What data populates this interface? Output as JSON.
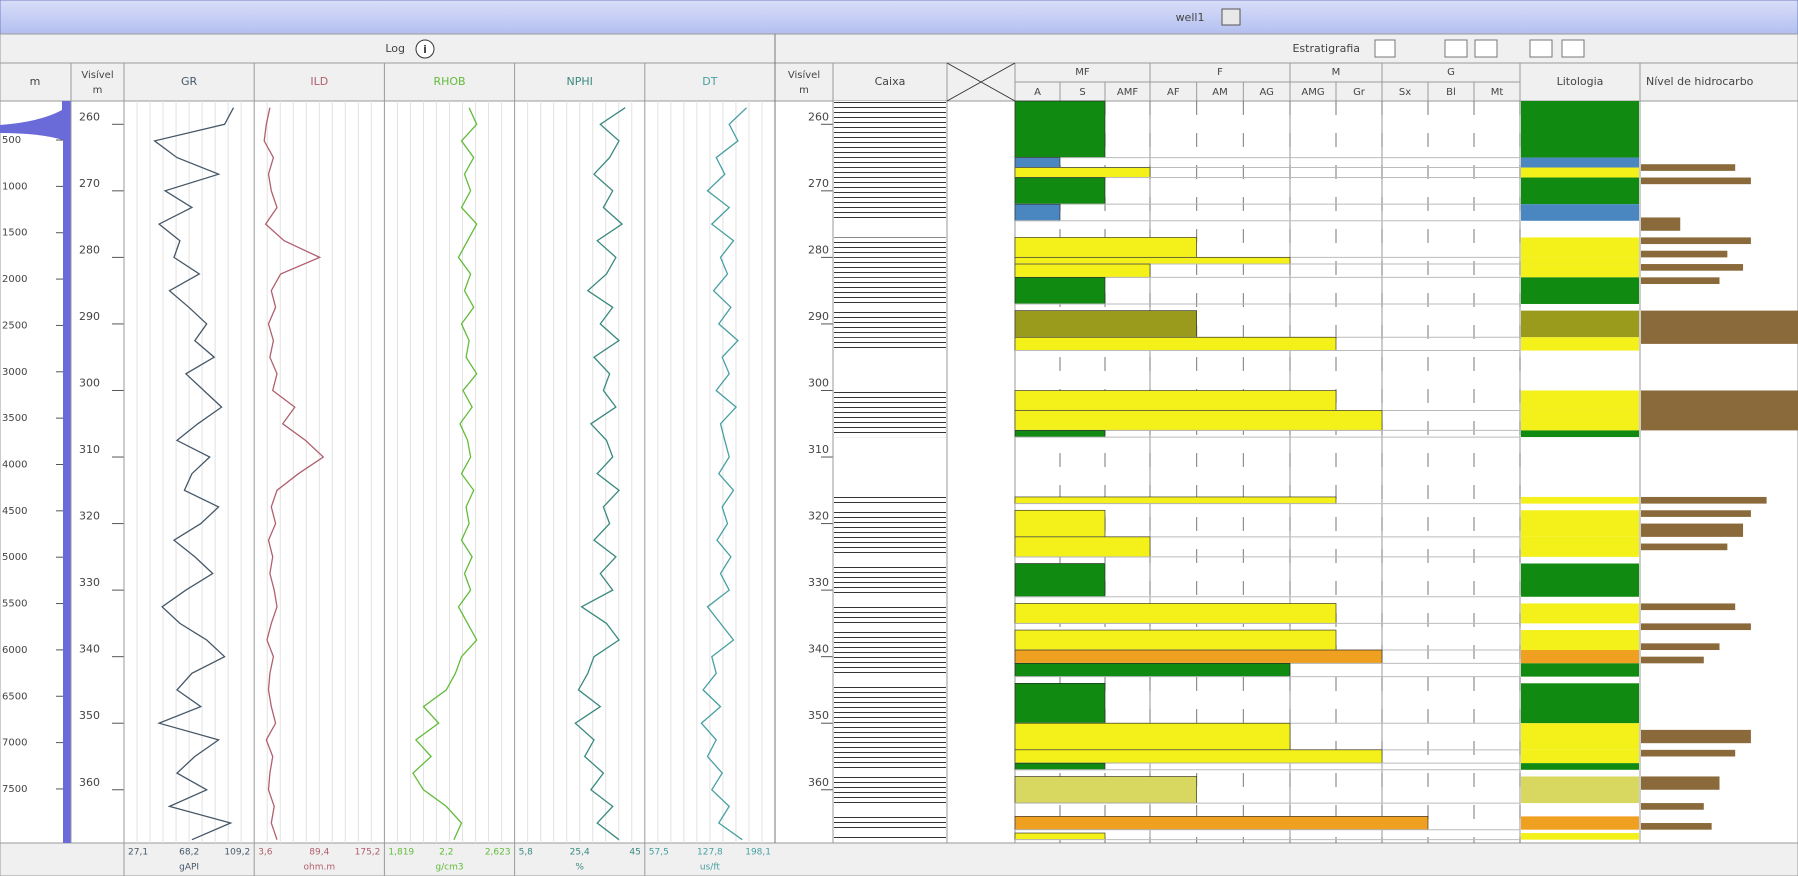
{
  "title": "well1",
  "log_panel": {
    "label": "Log"
  },
  "strat_panel": {
    "label": "Estratigrafia"
  },
  "md_column": {
    "label": "m",
    "range": [
      79,
      8083
    ],
    "ticks": [
      500,
      1000,
      1500,
      2000,
      2500,
      3000,
      3500,
      4000,
      4500,
      5000,
      5500,
      6000,
      6500,
      7000,
      7500
    ]
  },
  "depth_column": {
    "label": [
      "Visível",
      "m"
    ],
    "range": [
      256.5,
      368
    ],
    "ticks": [
      260,
      270,
      280,
      290,
      300,
      310,
      320,
      330,
      340,
      350,
      360
    ]
  },
  "depths": [
    257.5,
    260,
    262.5,
    265,
    267.5,
    270,
    272.5,
    275,
    277.5,
    280,
    282.5,
    285,
    287.5,
    290,
    292.5,
    295,
    297.5,
    300,
    302.5,
    305,
    307.5,
    310,
    312.5,
    315,
    317.5,
    320,
    322.5,
    325,
    327.5,
    330,
    332.5,
    335,
    337.5,
    340,
    342.5,
    345,
    347.5,
    350,
    352.5,
    355,
    357.5,
    360,
    362.5,
    365,
    367.5
  ],
  "curves": [
    {
      "name": "GR",
      "color": "#465868",
      "unit": "gAPI",
      "scale": [
        {
          "value": 27.1,
          "label": "27,1"
        },
        {
          "value": 68.2,
          "label": "68,2"
        },
        {
          "value": 109.2,
          "label": "109,2"
        }
      ],
      "values": [
        98,
        92,
        45,
        60,
        88,
        52,
        70,
        48,
        62,
        58,
        75,
        55,
        68,
        80,
        72,
        85,
        66,
        78,
        90,
        74,
        60,
        82,
        70,
        65,
        88,
        76,
        58,
        72,
        84,
        66,
        50,
        62,
        80,
        92,
        70,
        60,
        76,
        48,
        88,
        72,
        60,
        80,
        55,
        96,
        70
      ]
    },
    {
      "name": "ILD",
      "color": "#b0606e",
      "unit": "ohm.m",
      "scale": [
        {
          "value": 3.6,
          "label": "3,6"
        },
        {
          "value": 89.4,
          "label": "89,4"
        },
        {
          "value": 175.2,
          "label": "175,2"
        }
      ],
      "values": [
        20,
        15,
        12,
        25,
        18,
        22,
        30,
        14,
        40,
        90,
        35,
        22,
        28,
        18,
        25,
        20,
        30,
        24,
        55,
        38,
        70,
        95,
        60,
        30,
        22,
        28,
        18,
        24,
        20,
        26,
        30,
        22,
        16,
        25,
        20,
        18,
        22,
        28,
        15,
        24,
        20,
        18,
        26,
        22,
        30
      ]
    },
    {
      "name": "RHOB",
      "color": "#62bc3a",
      "unit": "g/cm3",
      "scale": [
        {
          "value": 1.819,
          "label": "1,819"
        },
        {
          "value": 2.2,
          "label": "2,2"
        },
        {
          "value": 2.623,
          "label": "2,623"
        }
      ],
      "values": [
        2.35,
        2.4,
        2.3,
        2.38,
        2.32,
        2.36,
        2.3,
        2.4,
        2.34,
        2.28,
        2.36,
        2.32,
        2.38,
        2.3,
        2.35,
        2.33,
        2.4,
        2.31,
        2.37,
        2.29,
        2.34,
        2.36,
        2.3,
        2.38,
        2.33,
        2.35,
        2.3,
        2.37,
        2.32,
        2.36,
        2.28,
        2.34,
        2.4,
        2.3,
        2.26,
        2.2,
        2.05,
        2.15,
        2.0,
        2.1,
        1.98,
        2.05,
        2.2,
        2.3,
        2.25
      ]
    },
    {
      "name": "NPHI",
      "color": "#3a8a80",
      "unit": "%",
      "scale": [
        {
          "value": 5.8,
          "label": "5,8"
        },
        {
          "value": 25.4,
          "label": "25,4"
        },
        45
      ],
      "values": [
        40,
        32,
        38,
        35,
        30,
        36,
        33,
        39,
        31,
        37,
        34,
        28,
        36,
        32,
        38,
        30,
        35,
        33,
        37,
        29,
        34,
        36,
        31,
        38,
        33,
        35,
        30,
        37,
        32,
        36,
        26,
        34,
        38,
        30,
        28,
        25,
        32,
        24,
        30,
        27,
        33,
        29,
        36,
        31,
        38
      ]
    },
    {
      "name": "DT",
      "color": "#48a0a2",
      "unit": "us/ft",
      "scale": [
        {
          "value": 57.5,
          "label": "57,5"
        },
        {
          "value": 127.8,
          "label": "127,8"
        },
        {
          "value": 198.1,
          "label": "198,1"
        }
      ],
      "values": [
        170,
        150,
        160,
        135,
        145,
        125,
        150,
        130,
        155,
        140,
        148,
        132,
        152,
        138,
        160,
        142,
        150,
        135,
        158,
        140,
        145,
        150,
        138,
        155,
        142,
        148,
        136,
        152,
        140,
        150,
        125,
        140,
        155,
        130,
        135,
        120,
        140,
        118,
        135,
        125,
        142,
        130,
        150,
        138,
        165
      ]
    }
  ],
  "strat_depth_label": [
    "Visível",
    "m"
  ],
  "box_label": "Caixa",
  "grain_groups": [
    {
      "name": "MF",
      "sizes": [
        "A",
        "S",
        "AMF"
      ]
    },
    {
      "name": "F",
      "sizes": [
        "AF",
        "AM",
        "AG"
      ]
    },
    {
      "name": "M",
      "sizes": [
        "AMG",
        "Gr"
      ]
    },
    {
      "name": "G",
      "sizes": [
        "Sx",
        "Bl",
        "Mt"
      ]
    }
  ],
  "layers": [
    {
      "top": 256.5,
      "base": 265,
      "color": "#118a11",
      "grain": "S"
    },
    {
      "top": 265,
      "base": 266.5,
      "color": "#4a86c0",
      "grain": "A"
    },
    {
      "top": 266.5,
      "base": 268,
      "color": "#f4f01a",
      "grain": "AMF"
    },
    {
      "top": 268,
      "base": 272,
      "color": "#118a11",
      "grain": "S"
    },
    {
      "top": 272,
      "base": 274.5,
      "color": "#4a86c0",
      "grain": "A"
    },
    {
      "top": 277,
      "base": 280,
      "color": "#f4f01a",
      "grain": "AF"
    },
    {
      "top": 280,
      "base": 281,
      "color": "#f4f01a",
      "grain": "AG"
    },
    {
      "top": 281,
      "base": 283,
      "color": "#f4f01a",
      "grain": "AMF"
    },
    {
      "top": 283,
      "base": 287,
      "color": "#118a11",
      "grain": "S"
    },
    {
      "top": 288,
      "base": 292,
      "color": "#9a9a1c",
      "grain": "AF"
    },
    {
      "top": 292,
      "base": 294,
      "color": "#f4f01a",
      "grain": "AMG"
    },
    {
      "top": 300,
      "base": 303,
      "color": "#f4f01a",
      "grain": "AMG"
    },
    {
      "top": 303,
      "base": 306,
      "color": "#f4f01a",
      "grain": "Gr"
    },
    {
      "top": 306,
      "base": 307,
      "color": "#118a11",
      "grain": "S"
    },
    {
      "top": 316,
      "base": 317,
      "color": "#f4f01a",
      "grain": "AMG"
    },
    {
      "top": 318,
      "base": 322,
      "color": "#f4f01a",
      "grain": "S"
    },
    {
      "top": 322,
      "base": 325,
      "color": "#f4f01a",
      "grain": "AMF"
    },
    {
      "top": 326,
      "base": 331,
      "color": "#118a11",
      "grain": "S"
    },
    {
      "top": 332,
      "base": 335,
      "color": "#f4f01a",
      "grain": "AMG"
    },
    {
      "top": 336,
      "base": 339,
      "color": "#f4f01a",
      "grain": "AMG"
    },
    {
      "top": 339,
      "base": 341,
      "color": "#f0a020",
      "grain": "Gr"
    },
    {
      "top": 341,
      "base": 343,
      "color": "#118a11",
      "grain": "AG"
    },
    {
      "top": 344,
      "base": 350,
      "color": "#118a11",
      "grain": "S"
    },
    {
      "top": 350,
      "base": 354,
      "color": "#f4f01a",
      "grain": "AG"
    },
    {
      "top": 354,
      "base": 356,
      "color": "#f4f01a",
      "grain": "Gr"
    },
    {
      "top": 356,
      "base": 357,
      "color": "#118a11",
      "grain": "S"
    },
    {
      "top": 358,
      "base": 362,
      "color": "#d8d860",
      "grain": "AF"
    },
    {
      "top": 364,
      "base": 366,
      "color": "#f0a020",
      "grain": "Sx"
    },
    {
      "top": 366.5,
      "base": 367.5,
      "color": "#f4f01a",
      "grain": "S"
    }
  ],
  "lithology_label": "Litologia",
  "hydrocarbon": {
    "label": "Nível de hidrocarbo",
    "color": "#8a6a3a",
    "intervals": [
      {
        "top": 266,
        "base": 267,
        "value": 60
      },
      {
        "top": 268,
        "base": 269,
        "value": 70
      },
      {
        "top": 274,
        "base": 276,
        "value": 25
      },
      {
        "top": 277,
        "base": 278,
        "value": 70
      },
      {
        "top": 279,
        "base": 280,
        "value": 55
      },
      {
        "top": 281,
        "base": 282,
        "value": 65
      },
      {
        "top": 283,
        "base": 284,
        "value": 50
      },
      {
        "top": 288,
        "base": 293,
        "value": 100
      },
      {
        "top": 300,
        "base": 306,
        "value": 100
      },
      {
        "top": 316,
        "base": 317,
        "value": 80
      },
      {
        "top": 318,
        "base": 319,
        "value": 70
      },
      {
        "top": 320,
        "base": 322,
        "value": 65
      },
      {
        "top": 323,
        "base": 324,
        "value": 55
      },
      {
        "top": 332,
        "base": 333,
        "value": 60
      },
      {
        "top": 335,
        "base": 336,
        "value": 70
      },
      {
        "top": 338,
        "base": 339,
        "value": 50
      },
      {
        "top": 340,
        "base": 341,
        "value": 40
      },
      {
        "top": 351,
        "base": 353,
        "value": 70
      },
      {
        "top": 354,
        "base": 355,
        "value": 60
      },
      {
        "top": 358,
        "base": 360,
        "value": 50
      },
      {
        "top": 362,
        "base": 363,
        "value": 40
      },
      {
        "top": 365,
        "base": 366,
        "value": 45
      }
    ]
  }
}
